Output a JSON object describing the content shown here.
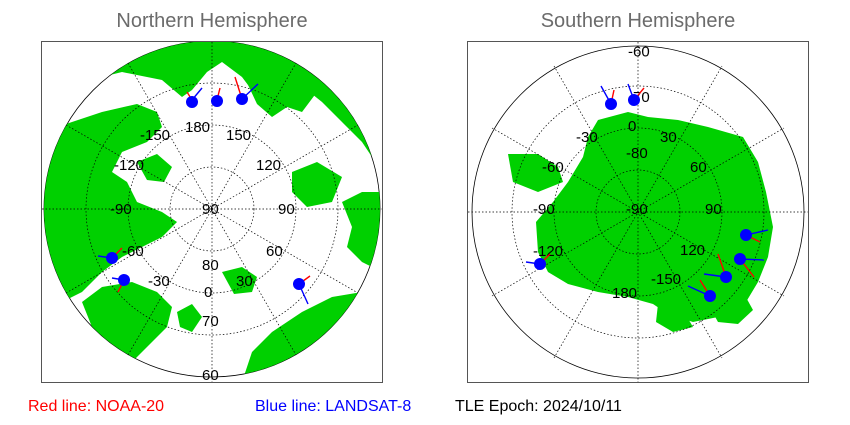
{
  "titles": {
    "north": "Northern Hemisphere",
    "south": "Southern Hemisphere"
  },
  "north": {
    "lon_labels": [
      "-150",
      "180",
      "150",
      "120",
      "90",
      "60",
      "30",
      "0",
      "-30",
      "-60",
      "-90",
      "-120"
    ],
    "lat_labels": [
      "90",
      "80",
      "70",
      "60"
    ]
  },
  "south": {
    "lon_labels": [
      "-30",
      "0",
      "30",
      "60",
      "90",
      "120",
      "-150",
      "180",
      "-120",
      "-90",
      "-60"
    ],
    "lat_labels": [
      "-60",
      "-70",
      "-80",
      "-90"
    ]
  },
  "legend": {
    "red": "Red line: NOAA-20",
    "blue": "Blue line: LANDSAT-8",
    "epoch": "TLE Epoch: 2024/10/11"
  },
  "colors": {
    "land": "#00d000",
    "ocean": "#ffffff",
    "noaa20": "#ff0000",
    "landsat8": "#0000ff",
    "marker": "#0000ff"
  }
}
